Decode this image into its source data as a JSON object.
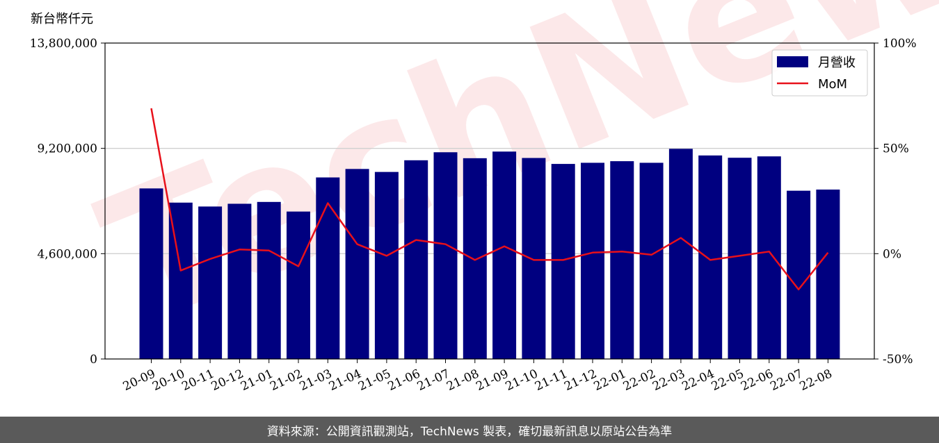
{
  "chart_data": {
    "type": "bar+line",
    "y_unit_label": "新台幣仟元",
    "categories": [
      "20-09",
      "20-10",
      "20-11",
      "20-12",
      "21-01",
      "21-02",
      "21-03",
      "21-04",
      "21-05",
      "21-06",
      "21-07",
      "21-08",
      "21-09",
      "21-10",
      "21-11",
      "21-12",
      "22-01",
      "22-02",
      "22-03",
      "22-04",
      "22-05",
      "22-06",
      "22-07",
      "22-08"
    ],
    "series": [
      {
        "name": "月營收",
        "axis": "left",
        "type": "bar",
        "color": "#000080",
        "values": [
          7450000,
          6830000,
          6660000,
          6780000,
          6860000,
          6440000,
          7930000,
          8300000,
          8170000,
          8680000,
          9030000,
          8770000,
          9060000,
          8780000,
          8520000,
          8570000,
          8640000,
          8570000,
          9180000,
          8890000,
          8790000,
          8850000,
          7350000,
          7400000
        ]
      },
      {
        "name": "MoM",
        "axis": "right",
        "type": "line",
        "color": "#e8101a",
        "values": [
          69,
          -8,
          -2.5,
          2,
          1.5,
          -6,
          24,
          4.5,
          -1,
          6.5,
          4.5,
          -3,
          3.5,
          -3,
          -3,
          0.5,
          1,
          -0.5,
          7.5,
          -3,
          -1,
          1,
          -17,
          0.5
        ]
      }
    ],
    "y_left": {
      "min": 0,
      "max": 13800000,
      "ticks": [
        "0",
        "4,600,000",
        "9,200,000",
        "13,800,000"
      ]
    },
    "y_right": {
      "min": -50,
      "max": 100,
      "ticks": [
        "-50%",
        "0%",
        "50%",
        "100%"
      ]
    },
    "grid": "horizontal",
    "legend": "top-right",
    "watermark": "TechNews"
  },
  "footer": {
    "text": "資料來源：公開資訊觀測站，TechNews 製表，確切最新訊息以原站公告為準"
  }
}
